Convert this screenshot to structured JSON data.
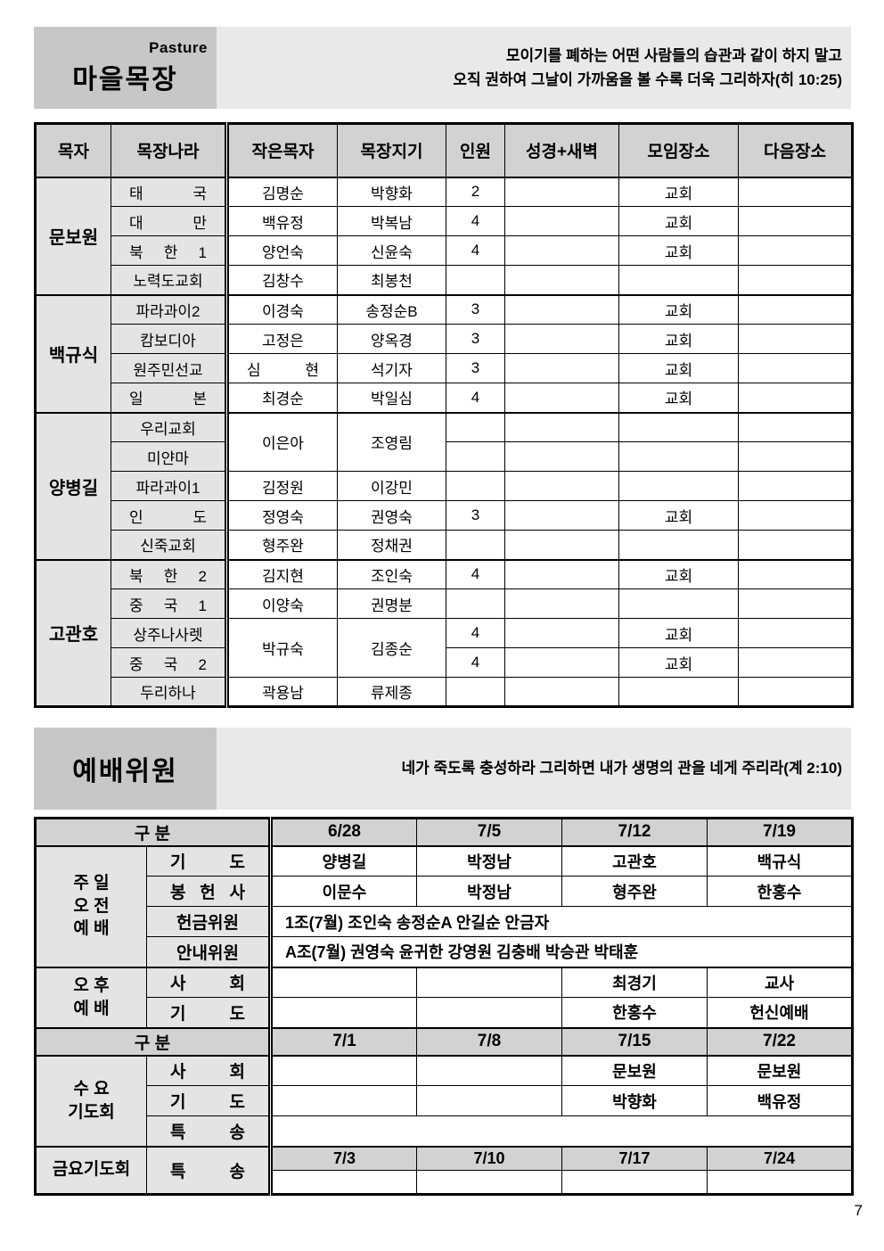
{
  "page_number": "7",
  "pasture": {
    "subtitle": "Pasture",
    "title": "마을목장",
    "verse": "모이기를 폐하는 어떤 사람들의 습관과 같이 하지 말고\n오직 권하여 그날이 가까움을 볼 수록 더욱 그리하자(히 10:25)",
    "columns": [
      "목자",
      "목장나라",
      "작은목자",
      "목장지기",
      "인원",
      "성경+새벽",
      "모임장소",
      "다음장소"
    ],
    "groups": [
      {
        "shepherd": "문보원",
        "rows": [
          {
            "country": "태 국",
            "leader": "김명순",
            "keeper": "박향화",
            "count": "2",
            "bible": "",
            "place": "교회",
            "next": ""
          },
          {
            "country": "대 만",
            "leader": "백유정",
            "keeper": "박복남",
            "count": "4",
            "bible": "",
            "place": "교회",
            "next": ""
          },
          {
            "country": "북 한 1",
            "leader": "양언숙",
            "keeper": "신윤숙",
            "count": "4",
            "bible": "",
            "place": "교회",
            "next": ""
          },
          {
            "country": "노력도교회",
            "leader": "김창수",
            "keeper": "최봉천",
            "count": "",
            "bible": "",
            "place": "",
            "next": ""
          }
        ]
      },
      {
        "shepherd": "백규식",
        "rows": [
          {
            "country": "파라과이2",
            "leader": "이경숙",
            "keeper": "송정순B",
            "count": "3",
            "bible": "",
            "place": "교회",
            "next": ""
          },
          {
            "country": "캄보디아",
            "leader": "고정은",
            "keeper": "양옥경",
            "count": "3",
            "bible": "",
            "place": "교회",
            "next": ""
          },
          {
            "country": "원주민선교",
            "leader": "심 현",
            "keeper": "석기자",
            "count": "3",
            "bible": "",
            "place": "교회",
            "next": ""
          },
          {
            "country": "일 본",
            "leader": "최경순",
            "keeper": "박일심",
            "count": "4",
            "bible": "",
            "place": "교회",
            "next": ""
          }
        ]
      },
      {
        "shepherd": "양병길",
        "rows": [
          {
            "country": "우리교회",
            "leader": "이은아",
            "keeper": "조영림",
            "leader_rowspan": 2,
            "count": "",
            "bible": "",
            "place": "",
            "next": ""
          },
          {
            "country": "미얀마",
            "merged_up": true,
            "count": "",
            "bible": "",
            "place": "",
            "next": ""
          },
          {
            "country": "파라과이1",
            "leader": "김정원",
            "keeper": "이강민",
            "count": "",
            "bible": "",
            "place": "",
            "next": ""
          },
          {
            "country": "인 도",
            "leader": "정영숙",
            "keeper": "권영숙",
            "count": "3",
            "bible": "",
            "place": "교회",
            "next": ""
          },
          {
            "country": "신죽교회",
            "leader": "형주완",
            "keeper": "정채권",
            "count": "",
            "bible": "",
            "place": "",
            "next": ""
          }
        ]
      },
      {
        "shepherd": "고관호",
        "rows": [
          {
            "country": "북 한 2",
            "leader": "김지현",
            "keeper": "조인숙",
            "count": "4",
            "bible": "",
            "place": "교회",
            "next": ""
          },
          {
            "country": "중 국 1",
            "leader": "이양숙",
            "keeper": "권명분",
            "count": "",
            "bible": "",
            "place": "",
            "next": ""
          },
          {
            "country": "상주나사렛",
            "leader": "박규숙",
            "keeper": "김종순",
            "leader_rowspan": 2,
            "count": "4",
            "bible": "",
            "place": "교회",
            "next": ""
          },
          {
            "country": "중 국 2",
            "merged_up": true,
            "count": "4",
            "bible": "",
            "place": "교회",
            "next": ""
          },
          {
            "country": "두리하나",
            "leader": "곽용남",
            "keeper": "류제종",
            "count": "",
            "bible": "",
            "place": "",
            "next": ""
          }
        ]
      }
    ]
  },
  "worship": {
    "title": "예배위원",
    "verse": "네가 죽도록 충성하라 그리하면 내가 생명의 관을 네게 주리라(계 2:10)",
    "blocks": [
      {
        "type": "header",
        "label": "구  분",
        "dates": [
          "6/28",
          "7/5",
          "7/12",
          "7/19"
        ]
      },
      {
        "type": "group",
        "label": "주 일\n오 전\n예 배",
        "rows": [
          {
            "item": "기 도",
            "cells": [
              "양병길",
              "박정남",
              "고관호",
              "백규식"
            ]
          },
          {
            "item": "봉 헌 사",
            "cells": [
              "이문수",
              "박정남",
              "형주완",
              "한홍수"
            ]
          },
          {
            "item": "헌금위원",
            "span_text": "1조(7월) 조인숙 송정순A 안길순 안금자"
          },
          {
            "item": "안내위원",
            "span_text": "A조(7월) 권영숙 윤귀한 강영원 김충배 박승관 박태훈"
          }
        ]
      },
      {
        "type": "group",
        "label": "오 후\n예 배",
        "rows": [
          {
            "item": "사 회",
            "cells": [
              "",
              "",
              "최경기",
              "교사"
            ]
          },
          {
            "item": "기 도",
            "cells": [
              "",
              "",
              "한홍수",
              "헌신예배"
            ]
          }
        ]
      },
      {
        "type": "header",
        "label": "구  분",
        "dates": [
          "7/1",
          "7/8",
          "7/15",
          "7/22"
        ]
      },
      {
        "type": "group",
        "label": "수 요\n기도회",
        "rows": [
          {
            "item": "사 회",
            "cells": [
              "",
              "",
              "문보원",
              "문보원"
            ]
          },
          {
            "item": "기 도",
            "cells": [
              "",
              "",
              "박향화",
              "백유정"
            ]
          },
          {
            "item": "특 송",
            "span_text": ""
          }
        ]
      },
      {
        "type": "group",
        "label": "금요기도회",
        "rows": [
          {
            "item": "특 송",
            "item_rowspan": 2,
            "cells": [
              "7/3",
              "7/10",
              "7/17",
              "7/24"
            ],
            "gray": true,
            "sub": true
          },
          {
            "continuation": true,
            "cells": [
              "",
              "",
              "",
              ""
            ],
            "sub": true
          }
        ]
      }
    ]
  }
}
